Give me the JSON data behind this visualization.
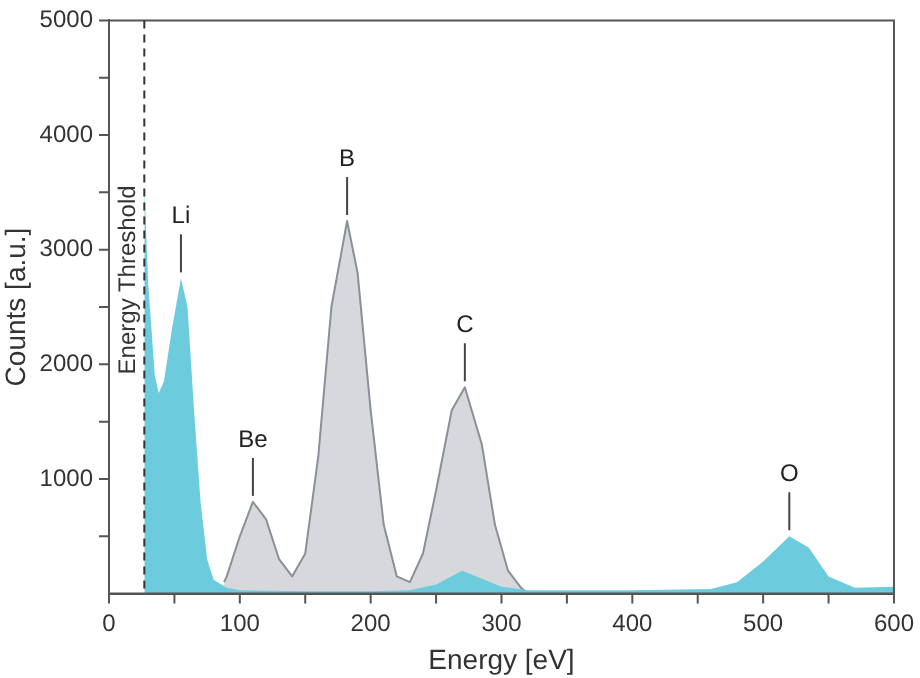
{
  "chart_data": {
    "type": "area",
    "xlabel": "Energy [eV]",
    "ylabel": "Counts [a.u.]",
    "xlim": [
      0,
      600
    ],
    "xticks": [
      0,
      {
        "value": 50,
        "label": null
      },
      100,
      {
        "value": 150,
        "label": null
      },
      200,
      {
        "value": 250,
        "label": null
      },
      300,
      {
        "value": 350,
        "label": null
      },
      400,
      {
        "value": 450,
        "label": null
      },
      500,
      {
        "value": 550,
        "label": null
      },
      600
    ],
    "ylim": [
      0,
      5000
    ],
    "yticks": [
      {
        "value": 500,
        "label": null
      },
      1000,
      {
        "value": 1500,
        "label": null
      },
      2000,
      {
        "value": 2500,
        "label": null
      },
      3000,
      {
        "value": 3500,
        "label": null
      },
      4000,
      {
        "value": 4500,
        "label": null
      },
      5000
    ],
    "grid": false,
    "legend": false,
    "series": [
      {
        "color": "#8a8f99",
        "x": [
          88,
          90,
          100,
          110,
          120,
          130,
          140,
          150,
          160,
          170,
          182,
          190,
          200,
          210,
          220,
          230,
          240,
          250,
          262,
          272,
          285,
          295,
          305,
          315,
          320
        ],
        "values": [
          100,
          150,
          500,
          800,
          650,
          300,
          150,
          350,
          1200,
          2500,
          3250,
          2800,
          1600,
          600,
          150,
          100,
          350,
          900,
          1600,
          1800,
          1300,
          600,
          200,
          50,
          0
        ]
      },
      {
        "color": "#6ccbdc",
        "x": [
          27,
          30,
          35,
          38,
          42,
          48,
          55,
          60,
          65,
          70,
          75,
          80,
          90,
          100,
          150,
          200,
          230,
          250,
          270,
          285,
          300,
          320,
          400,
          460,
          480,
          500,
          520,
          535,
          550,
          570,
          600
        ],
        "values": [
          3550,
          2700,
          1900,
          1750,
          1850,
          2300,
          2750,
          2500,
          1600,
          800,
          300,
          120,
          50,
          30,
          20,
          20,
          30,
          80,
          200,
          130,
          60,
          30,
          30,
          40,
          100,
          280,
          500,
          400,
          150,
          50,
          60
        ]
      }
    ],
    "ref_lines": [
      {
        "axis": "x",
        "value": 27,
        "label": "Energy Threshold",
        "color": "#333333",
        "line_style": "dashed"
      }
    ],
    "annotations": [
      {
        "text": "Li",
        "x": 55,
        "y": 2750
      },
      {
        "text": "Be",
        "x": 110,
        "y": 800
      },
      {
        "text": "B",
        "x": 182,
        "y": 3250
      },
      {
        "text": "C",
        "x": 272,
        "y": 1800
      },
      {
        "text": "O",
        "x": 520,
        "y": 500
      }
    ]
  }
}
